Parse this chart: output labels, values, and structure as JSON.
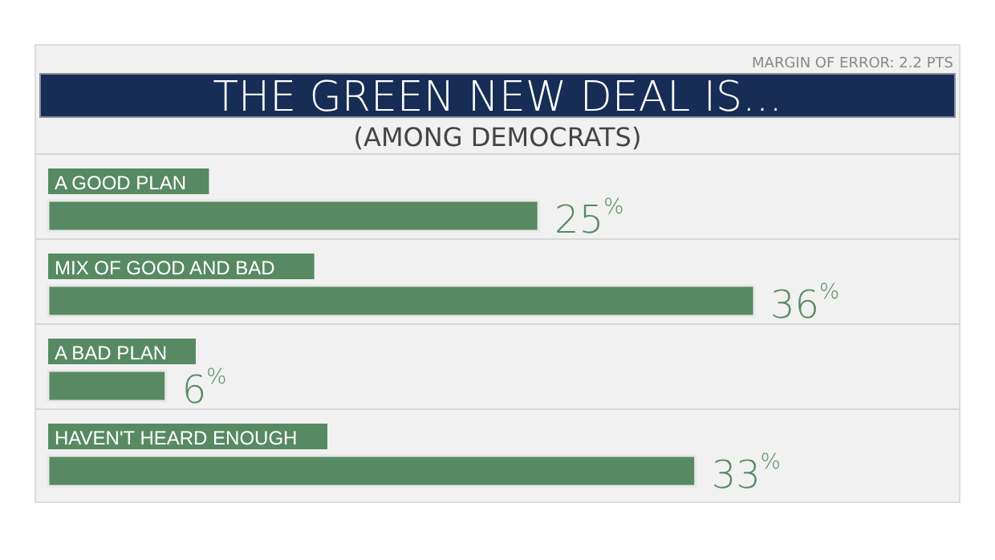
{
  "chart_data": {
    "type": "bar",
    "orientation": "horizontal",
    "title": "THE GREEN NEW DEAL IS...",
    "subtitle": "(AMONG DEMOCRATS)",
    "annotations": [
      "MARGIN OF ERROR: 2.2 PTS"
    ],
    "categories": [
      "A GOOD PLAN",
      "MIX OF GOOD AND BAD",
      "A BAD PLAN",
      "HAVEN'T HEARD ENOUGH"
    ],
    "values": [
      25,
      36,
      6,
      33
    ],
    "color": "#578a62",
    "value_labels": [
      "25$^{%}$",
      "36$^{%}$",
      "6$^{%}$",
      "33$^{%}$"
    ]
  }
}
